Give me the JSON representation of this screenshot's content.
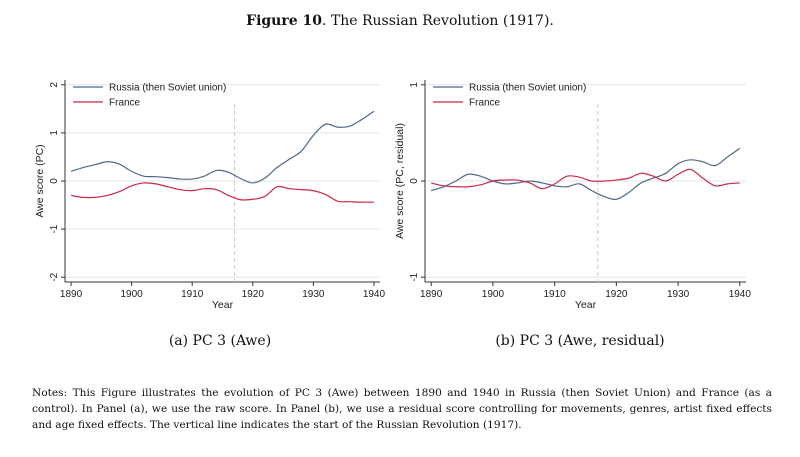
{
  "figure": {
    "label": "Figure 10",
    "title": ". The Russian Revolution (1917)."
  },
  "notes": "Notes: This Figure illustrates the evolution of PC 3 (Awe) between 1890 and 1940 in Russia (then Soviet Union) and France (as a control). In Panel (a), we use the raw score. In Panel (b), we use a residual score controlling for movements, genres, artist fixed effects and age fixed effects. The vertical line indicates the start of the Russian Revolution (1917).",
  "colors": {
    "russia": "#4e6a8a",
    "france": "#c8284c",
    "vline": "#c8c8c8",
    "grid": "#e6e6e6"
  },
  "chart_data": [
    {
      "type": "line",
      "caption": "(a) PC 3 (Awe)",
      "xlabel": "Year",
      "ylabel": "Awe score (PC)",
      "xlim": [
        1889,
        1941
      ],
      "ylim": [
        -2.1,
        2.1
      ],
      "xticks": [
        1890,
        1900,
        1910,
        1920,
        1930,
        1940
      ],
      "yticks": [
        -2,
        -1,
        0,
        1,
        2
      ],
      "grid": true,
      "vline": 1917,
      "legend_position": "top-left",
      "series": [
        {
          "name": "Russia (then Soviet union)",
          "color": "#4e6a8a",
          "x": [
            1890,
            1892,
            1894,
            1896,
            1898,
            1900,
            1902,
            1904,
            1906,
            1908,
            1910,
            1912,
            1914,
            1916,
            1918,
            1920,
            1922,
            1924,
            1926,
            1928,
            1930,
            1932,
            1934,
            1936,
            1938,
            1940
          ],
          "y": [
            0.2,
            0.28,
            0.34,
            0.4,
            0.35,
            0.2,
            0.1,
            0.09,
            0.07,
            0.04,
            0.04,
            0.1,
            0.22,
            0.18,
            0.05,
            -0.04,
            0.06,
            0.28,
            0.45,
            0.62,
            0.95,
            1.18,
            1.12,
            1.14,
            1.28,
            1.45
          ]
        },
        {
          "name": "France",
          "color": "#c8284c",
          "x": [
            1890,
            1892,
            1894,
            1896,
            1898,
            1900,
            1902,
            1904,
            1906,
            1908,
            1910,
            1912,
            1914,
            1916,
            1918,
            1920,
            1922,
            1924,
            1926,
            1928,
            1930,
            1932,
            1934,
            1936,
            1938,
            1940
          ],
          "y": [
            -0.3,
            -0.34,
            -0.34,
            -0.3,
            -0.22,
            -0.1,
            -0.04,
            -0.06,
            -0.12,
            -0.18,
            -0.2,
            -0.16,
            -0.18,
            -0.3,
            -0.39,
            -0.38,
            -0.32,
            -0.12,
            -0.16,
            -0.18,
            -0.2,
            -0.28,
            -0.42,
            -0.43,
            -0.44,
            -0.44
          ]
        }
      ]
    },
    {
      "type": "line",
      "caption": "(b) PC 3 (Awe, residual)",
      "xlabel": "Year",
      "ylabel": "Awe score (PC, residual)",
      "xlim": [
        1889,
        1941
      ],
      "ylim": [
        -1.05,
        1.05
      ],
      "xticks": [
        1890,
        1900,
        1910,
        1920,
        1930,
        1940
      ],
      "yticks": [
        -1,
        0,
        1
      ],
      "grid": true,
      "vline": 1917,
      "legend_position": "top-left",
      "series": [
        {
          "name": "Russia (then Soviet union)",
          "color": "#4e6a8a",
          "x": [
            1890,
            1892,
            1894,
            1896,
            1898,
            1900,
            1902,
            1904,
            1906,
            1908,
            1910,
            1912,
            1914,
            1916,
            1918,
            1920,
            1922,
            1924,
            1926,
            1928,
            1930,
            1932,
            1934,
            1936,
            1938,
            1940
          ],
          "y": [
            -0.1,
            -0.06,
            0.0,
            0.07,
            0.05,
            0.0,
            -0.03,
            -0.02,
            0.0,
            -0.02,
            -0.05,
            -0.06,
            -0.03,
            -0.1,
            -0.16,
            -0.19,
            -0.12,
            -0.02,
            0.03,
            0.08,
            0.18,
            0.22,
            0.2,
            0.16,
            0.25,
            0.34
          ]
        },
        {
          "name": "France",
          "color": "#c8284c",
          "x": [
            1890,
            1892,
            1894,
            1896,
            1898,
            1900,
            1902,
            1904,
            1906,
            1908,
            1910,
            1912,
            1914,
            1916,
            1918,
            1920,
            1922,
            1924,
            1926,
            1928,
            1930,
            1932,
            1934,
            1936,
            1938,
            1940
          ],
          "y": [
            -0.02,
            -0.05,
            -0.06,
            -0.06,
            -0.04,
            0.0,
            0.01,
            0.01,
            -0.02,
            -0.08,
            -0.03,
            0.05,
            0.04,
            0.0,
            0.0,
            0.01,
            0.03,
            0.08,
            0.05,
            0.0,
            0.07,
            0.12,
            0.03,
            -0.05,
            -0.03,
            -0.02
          ]
        }
      ]
    }
  ]
}
